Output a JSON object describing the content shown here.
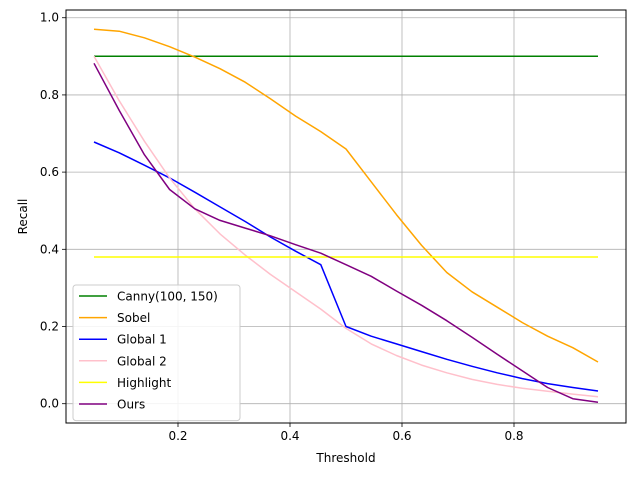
{
  "chart_data": {
    "type": "line",
    "xlabel": "Threshold",
    "ylabel": "Recall",
    "xlim": [
      0.0,
      1.0
    ],
    "ylim": [
      -0.05,
      1.02
    ],
    "xticks": [
      0.2,
      0.4,
      0.6,
      0.8
    ],
    "yticks": [
      0.0,
      0.2,
      0.4,
      0.6,
      0.8,
      1.0
    ],
    "xtick_labels": [
      "0.2",
      "0.4",
      "0.6",
      "0.8"
    ],
    "ytick_labels": [
      "0.0",
      "0.2",
      "0.4",
      "0.6",
      "0.8",
      "1.0"
    ],
    "grid": true,
    "legend_position": "lower-left",
    "x": [
      0.05,
      0.095,
      0.14,
      0.185,
      0.23,
      0.275,
      0.32,
      0.365,
      0.41,
      0.455,
      0.5,
      0.545,
      0.59,
      0.635,
      0.68,
      0.725,
      0.77,
      0.815,
      0.86,
      0.905,
      0.95
    ],
    "series": [
      {
        "name": "Canny(100, 150)",
        "color": "#008000",
        "values": [
          0.9,
          0.9,
          0.9,
          0.9,
          0.9,
          0.9,
          0.9,
          0.9,
          0.9,
          0.9,
          0.9,
          0.9,
          0.9,
          0.9,
          0.9,
          0.9,
          0.9,
          0.9,
          0.9,
          0.9,
          0.9
        ]
      },
      {
        "name": "Sobel",
        "color": "#ffa500",
        "values": [
          0.97,
          0.965,
          0.948,
          0.925,
          0.898,
          0.868,
          0.833,
          0.79,
          0.745,
          0.705,
          0.66,
          0.575,
          0.49,
          0.41,
          0.34,
          0.29,
          0.25,
          0.21,
          0.175,
          0.145,
          0.108
        ]
      },
      {
        "name": "Global 1",
        "color": "#0000ff",
        "values": [
          0.678,
          0.65,
          0.618,
          0.585,
          0.548,
          0.51,
          0.472,
          0.432,
          0.395,
          0.36,
          0.2,
          0.175,
          0.155,
          0.135,
          0.115,
          0.097,
          0.08,
          0.065,
          0.052,
          0.042,
          0.033
        ]
      },
      {
        "name": "Global 2",
        "color": "#ffc0cb",
        "values": [
          0.9,
          0.785,
          0.68,
          0.585,
          0.505,
          0.44,
          0.385,
          0.335,
          0.29,
          0.245,
          0.195,
          0.155,
          0.125,
          0.1,
          0.08,
          0.063,
          0.05,
          0.04,
          0.032,
          0.025,
          0.018
        ]
      },
      {
        "name": "Highlight",
        "color": "#ffff00",
        "values": [
          0.38,
          0.38,
          0.38,
          0.38,
          0.38,
          0.38,
          0.38,
          0.38,
          0.38,
          0.38,
          0.38,
          0.38,
          0.38,
          0.38,
          0.38,
          0.38,
          0.38,
          0.38,
          0.38,
          0.38,
          0.38
        ]
      },
      {
        "name": "Ours",
        "color": "#800080",
        "values": [
          0.882,
          0.76,
          0.645,
          0.555,
          0.505,
          0.475,
          0.455,
          0.435,
          0.412,
          0.39,
          0.36,
          0.33,
          0.292,
          0.255,
          0.215,
          0.172,
          0.128,
          0.085,
          0.042,
          0.013,
          0.004
        ]
      }
    ]
  }
}
